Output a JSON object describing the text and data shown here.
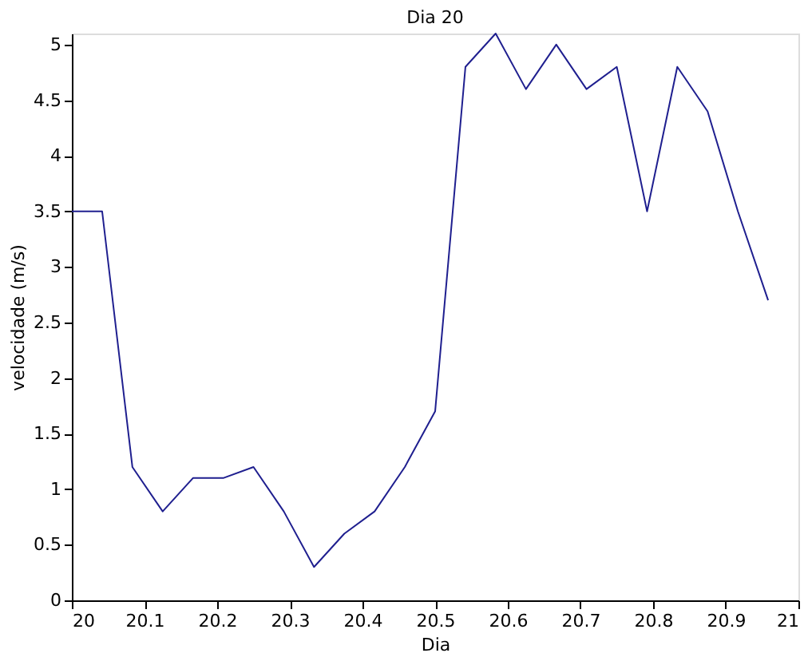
{
  "chart_data": {
    "type": "line",
    "title": "Dia 20",
    "xlabel": "Dia",
    "ylabel": "velocidade (m/s)",
    "x": [
      20.0,
      20.0417,
      20.0833,
      20.125,
      20.1667,
      20.2083,
      20.25,
      20.2917,
      20.3333,
      20.375,
      20.4167,
      20.4583,
      20.5,
      20.5417,
      20.5833,
      20.625,
      20.6667,
      20.7083,
      20.75,
      20.7917,
      20.8333,
      20.875,
      20.9167,
      20.9583
    ],
    "series": [
      {
        "color": "#1f1f8f",
        "values": [
          3.5,
          3.5,
          1.2,
          0.8,
          1.1,
          1.1,
          1.2,
          0.8,
          0.3,
          0.6,
          0.8,
          1.2,
          1.7,
          4.8,
          5.1,
          4.6,
          5.0,
          4.6,
          4.8,
          3.5,
          4.8,
          4.4,
          3.5,
          2.7
        ]
      }
    ],
    "xlim": [
      20,
      21
    ],
    "xticks": [
      20,
      20.1,
      20.2,
      20.3,
      20.4,
      20.5,
      20.6,
      20.7,
      20.8,
      20.9,
      21
    ],
    "ylim": [
      0,
      5.1
    ],
    "yticks": [
      0,
      0.5,
      1,
      1.5,
      2,
      2.5,
      3,
      3.5,
      4,
      4.5,
      5
    ],
    "grid": false,
    "marker": "none",
    "line_style": "solid"
  }
}
